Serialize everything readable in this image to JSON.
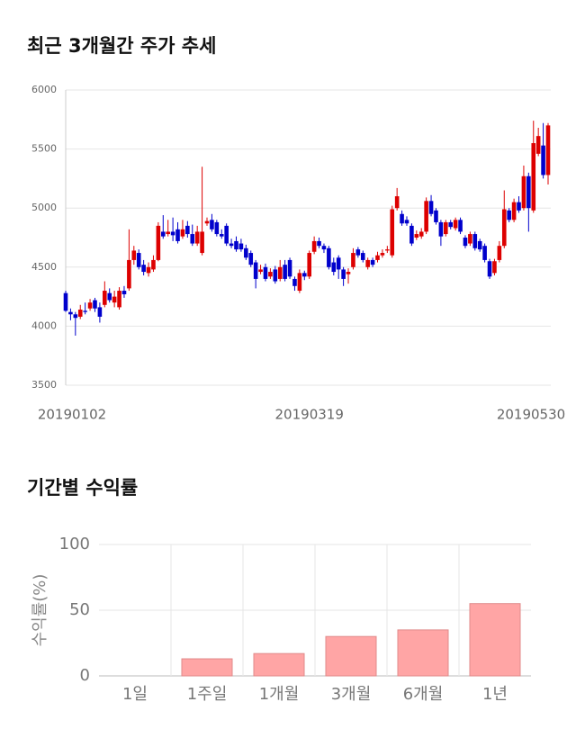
{
  "chart_data": [
    {
      "type": "candlestick",
      "title": "최근 3개월간 주가 추세",
      "categories": [
        "20190102",
        null,
        null,
        null,
        null,
        null,
        null,
        null,
        null,
        null,
        null,
        null,
        null,
        null,
        null,
        null,
        null,
        null,
        null,
        null,
        null,
        null,
        null,
        null,
        null,
        null,
        null,
        null,
        null,
        null,
        null,
        null,
        null,
        null,
        null,
        null,
        null,
        null,
        null,
        null,
        null,
        null,
        null,
        null,
        null,
        null,
        null,
        null,
        null,
        null,
        "20190319",
        null,
        null,
        null,
        null,
        null,
        null,
        null,
        null,
        null,
        null,
        null,
        null,
        null,
        null,
        null,
        null,
        null,
        null,
        null,
        null,
        null,
        null,
        null,
        null,
        null,
        null,
        null,
        null,
        null,
        null,
        null,
        null,
        null,
        null,
        null,
        null,
        null,
        null,
        null,
        null,
        null,
        null,
        null,
        null,
        null,
        null,
        null,
        null,
        "20190530"
      ],
      "open": [
        4280,
        4120,
        4100,
        4080,
        4130,
        4150,
        4220,
        4160,
        4180,
        4280,
        4200,
        4160,
        4300,
        4320,
        4560,
        4620,
        4520,
        4450,
        4480,
        4560,
        4800,
        4780,
        4800,
        4820,
        4760,
        4850,
        4780,
        4700,
        4620,
        4870,
        4900,
        4880,
        4780,
        4850,
        4700,
        4720,
        4700,
        4660,
        4620,
        4540,
        4460,
        4500,
        4420,
        4480,
        4400,
        4520,
        4560,
        4400,
        4300,
        4450,
        4420,
        4630,
        4720,
        4680,
        4660,
        4540,
        4580,
        4480,
        4440,
        4500,
        4650,
        4620,
        4500,
        4560,
        4560,
        4600,
        4640,
        4600,
        5000,
        4950,
        4900,
        4850,
        4750,
        4760,
        4800,
        5060,
        4980,
        4880,
        4780,
        4880,
        4830,
        4900,
        4750,
        4700,
        4780,
        4720,
        4680,
        4550,
        4450,
        4560,
        4680,
        4980,
        4900,
        5050,
        5000,
        5270,
        4980,
        5460,
        5530,
        5280
      ],
      "high": [
        4300,
        4150,
        4120,
        4180,
        4200,
        4230,
        4240,
        4200,
        4380,
        4320,
        4300,
        4330,
        4340,
        4820,
        4680,
        4650,
        4560,
        4540,
        4600,
        4880,
        4940,
        4900,
        4920,
        4880,
        4900,
        4890,
        4860,
        4850,
        5350,
        4920,
        4950,
        4900,
        4820,
        4870,
        4740,
        4760,
        4740,
        4690,
        4640,
        4560,
        4520,
        4530,
        4490,
        4510,
        4560,
        4560,
        4580,
        4420,
        4480,
        4470,
        4640,
        4760,
        4750,
        4700,
        4680,
        4580,
        4600,
        4500,
        4490,
        4660,
        4670,
        4640,
        4580,
        4580,
        4630,
        4650,
        4680,
        5020,
        5170,
        4980,
        4930,
        4870,
        4810,
        4830,
        5090,
        5110,
        5000,
        4900,
        4900,
        4900,
        4920,
        4920,
        4770,
        4800,
        4800,
        4740,
        4700,
        4570,
        4570,
        4720,
        5150,
        5000,
        5080,
        5100,
        5360,
        5300,
        5740,
        5680,
        5720,
        5720
      ],
      "low": [
        4120,
        4050,
        3920,
        4060,
        4100,
        4130,
        4120,
        4030,
        4160,
        4200,
        4160,
        4140,
        4240,
        4300,
        4520,
        4480,
        4430,
        4420,
        4460,
        4550,
        4740,
        4760,
        4720,
        4700,
        4740,
        4750,
        4680,
        4680,
        4600,
        4850,
        4800,
        4760,
        4740,
        4680,
        4660,
        4630,
        4630,
        4560,
        4500,
        4320,
        4440,
        4380,
        4400,
        4360,
        4380,
        4380,
        4400,
        4300,
        4280,
        4390,
        4400,
        4610,
        4660,
        4620,
        4480,
        4430,
        4400,
        4340,
        4360,
        4480,
        4580,
        4540,
        4480,
        4500,
        4540,
        4580,
        4620,
        4580,
        4980,
        4850,
        4850,
        4680,
        4730,
        4740,
        4780,
        4930,
        4860,
        4680,
        4760,
        4820,
        4810,
        4780,
        4660,
        4680,
        4640,
        4630,
        4540,
        4400,
        4430,
        4540,
        4660,
        4880,
        4880,
        4960,
        4980,
        4800,
        4960,
        5440,
        5250,
        5200
      ],
      "close": [
        4130,
        4100,
        4070,
        4140,
        4120,
        4200,
        4150,
        4080,
        4300,
        4220,
        4250,
        4300,
        4270,
        4560,
        4640,
        4500,
        4460,
        4500,
        4560,
        4850,
        4760,
        4800,
        4770,
        4720,
        4820,
        4780,
        4700,
        4800,
        4800,
        4890,
        4820,
        4780,
        4760,
        4700,
        4680,
        4650,
        4650,
        4580,
        4520,
        4400,
        4480,
        4400,
        4460,
        4380,
        4500,
        4400,
        4420,
        4340,
        4450,
        4420,
        4620,
        4720,
        4680,
        4650,
        4500,
        4460,
        4480,
        4400,
        4460,
        4620,
        4600,
        4560,
        4560,
        4520,
        4600,
        4620,
        4650,
        4990,
        5100,
        4870,
        4870,
        4700,
        4780,
        4800,
        5060,
        4950,
        4880,
        4760,
        4880,
        4840,
        4900,
        4800,
        4680,
        4780,
        4660,
        4650,
        4560,
        4420,
        4550,
        4680,
        4990,
        4900,
        5050,
        4980,
        5270,
        5000,
        5550,
        5610,
        5280,
        5700
      ],
      "up_color": "#dd0000",
      "down_color": "#0000cc",
      "ylim": [
        3500,
        6000
      ],
      "yticks": [
        3500,
        4000,
        4500,
        5000,
        5500,
        6000
      ],
      "grid": true
    },
    {
      "type": "bar",
      "title": "기간별 수익률",
      "ylabel": "수익률(%)",
      "categories": [
        "1일",
        "1주일",
        "1개월",
        "3개월",
        "6개월",
        "1년"
      ],
      "values": [
        0,
        13,
        17,
        30,
        35,
        55
      ],
      "color": "#ffa5a5",
      "ylim": [
        0,
        100
      ],
      "yticks": [
        0,
        50,
        100
      ],
      "grid": true
    }
  ]
}
